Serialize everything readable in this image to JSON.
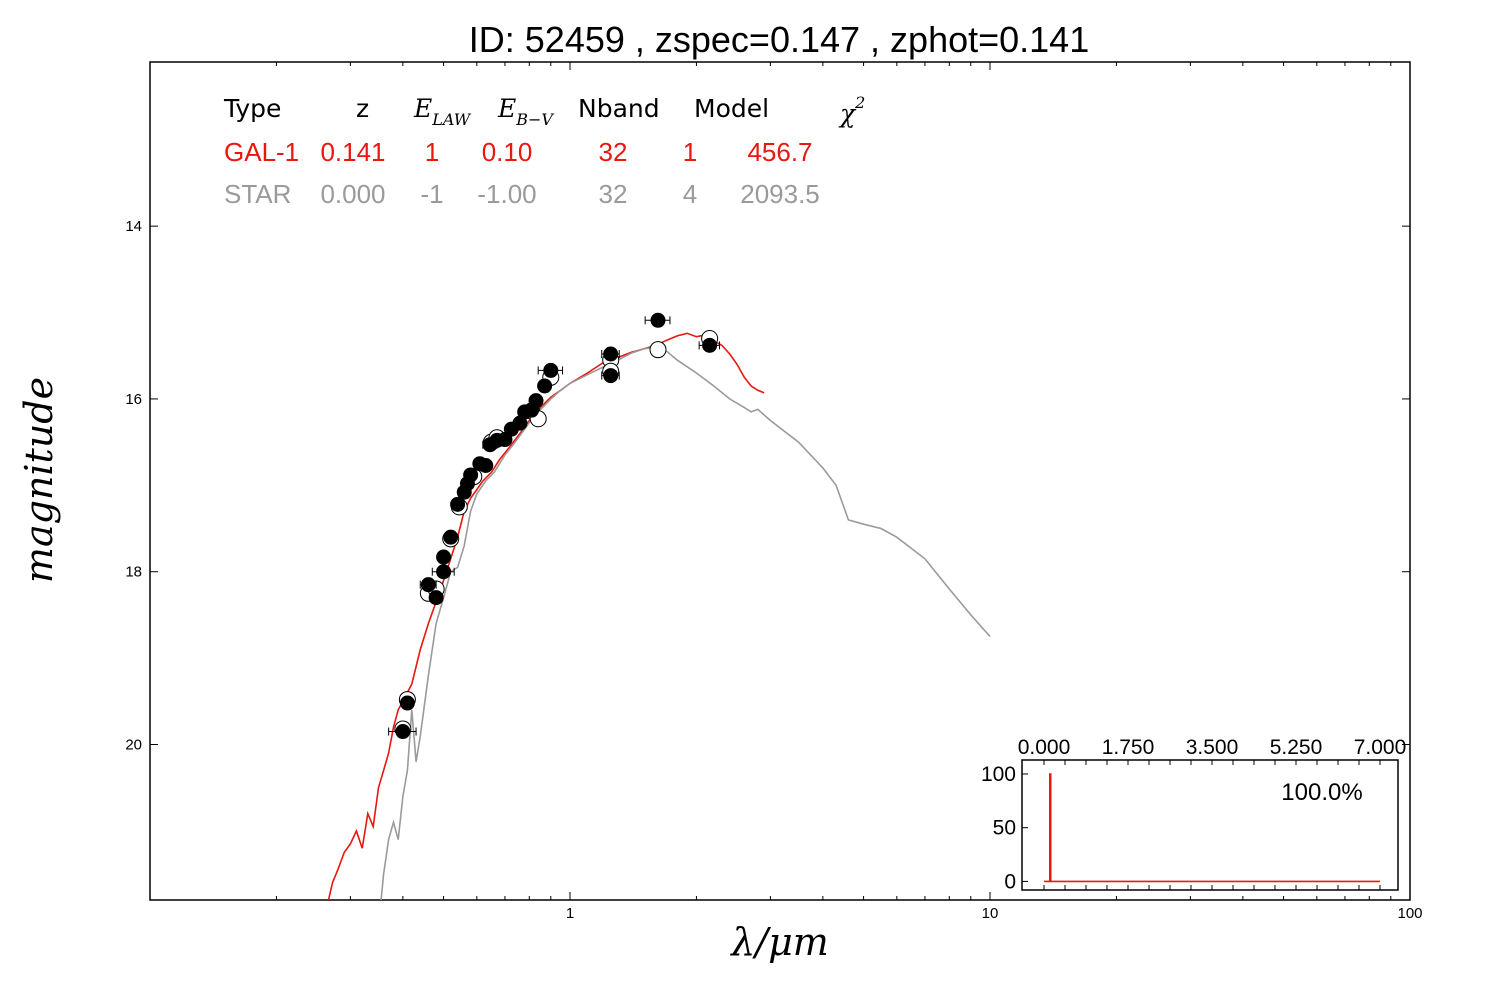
{
  "chart_data": [
    {
      "type": "line",
      "title": "ID:  52459 , zspec=0.147 , zphot=0.141",
      "xlabel": "λ/μm",
      "ylabel": "magnitude",
      "x_scale": "log",
      "xlim": [
        0.1,
        100
      ],
      "ylim": [
        21.8,
        12.1
      ],
      "y_inverted": true,
      "x_tick_labels": [
        "1",
        "10",
        "100"
      ],
      "y_tick_labels": [
        "14",
        "16",
        "18",
        "20"
      ],
      "grid": false,
      "fit_table": {
        "header": {
          "type": "Type",
          "z": "z",
          "elaw_base": "E",
          "elaw_sub": "LAW",
          "ebv_base": "E",
          "ebv_sub": "B−V",
          "nband": "Nband",
          "model": "Model",
          "chi_base": "χ",
          "chi_sup": "2"
        },
        "rows": [
          {
            "type": "GAL-1",
            "z": "0.141",
            "elaw": "1",
            "ebv": "0.10",
            "nband": "32",
            "model": "1",
            "chi2": "456.7",
            "color": "#e8170f"
          },
          {
            "type": "STAR",
            "z": "0.000",
            "elaw": "-1",
            "ebv": "-1.00",
            "nband": "32",
            "model": "4",
            "chi2": "2093.5",
            "color": "#9a9a9a"
          }
        ]
      },
      "series": [
        {
          "color": "#e8170f",
          "points": [
            [
              0.266,
              21.8
            ],
            [
              0.272,
              21.6
            ],
            [
              0.28,
              21.45
            ],
            [
              0.29,
              21.25
            ],
            [
              0.3,
              21.15
            ],
            [
              0.31,
              21.0
            ],
            [
              0.32,
              21.2
            ],
            [
              0.33,
              20.8
            ],
            [
              0.34,
              20.95
            ],
            [
              0.35,
              20.5
            ],
            [
              0.36,
              20.3
            ],
            [
              0.37,
              20.1
            ],
            [
              0.38,
              19.8
            ],
            [
              0.39,
              19.6
            ],
            [
              0.4,
              19.5
            ],
            [
              0.42,
              19.3
            ],
            [
              0.44,
              18.9
            ],
            [
              0.46,
              18.6
            ],
            [
              0.48,
              18.35
            ],
            [
              0.5,
              18.1
            ],
            [
              0.52,
              17.85
            ],
            [
              0.54,
              17.6
            ],
            [
              0.56,
              17.3
            ],
            [
              0.58,
              17.15
            ],
            [
              0.6,
              17.05
            ],
            [
              0.62,
              16.95
            ],
            [
              0.65,
              16.85
            ],
            [
              0.68,
              16.7
            ],
            [
              0.72,
              16.55
            ],
            [
              0.76,
              16.4
            ],
            [
              0.8,
              16.25
            ],
            [
              0.85,
              16.1
            ],
            [
              0.9,
              15.98
            ],
            [
              0.95,
              15.9
            ],
            [
              1.0,
              15.82
            ],
            [
              1.1,
              15.7
            ],
            [
              1.2,
              15.58
            ],
            [
              1.3,
              15.52
            ],
            [
              1.4,
              15.46
            ],
            [
              1.5,
              15.42
            ],
            [
              1.6,
              15.38
            ],
            [
              1.7,
              15.32
            ],
            [
              1.8,
              15.27
            ],
            [
              1.9,
              15.24
            ],
            [
              2.0,
              15.28
            ],
            [
              2.1,
              15.26
            ],
            [
              2.2,
              15.33
            ],
            [
              2.3,
              15.38
            ],
            [
              2.4,
              15.48
            ],
            [
              2.5,
              15.6
            ],
            [
              2.6,
              15.75
            ],
            [
              2.7,
              15.85
            ],
            [
              2.8,
              15.9
            ],
            [
              2.9,
              15.93
            ]
          ]
        },
        {
          "color": "#9a9a9a",
          "points": [
            [
              0.355,
              21.8
            ],
            [
              0.36,
              21.5
            ],
            [
              0.37,
              21.1
            ],
            [
              0.38,
              20.9
            ],
            [
              0.39,
              21.1
            ],
            [
              0.4,
              20.6
            ],
            [
              0.41,
              20.3
            ],
            [
              0.42,
              19.6
            ],
            [
              0.43,
              20.2
            ],
            [
              0.44,
              19.9
            ],
            [
              0.46,
              19.2
            ],
            [
              0.48,
              18.6
            ],
            [
              0.5,
              18.3
            ],
            [
              0.52,
              18.0
            ],
            [
              0.54,
              17.95
            ],
            [
              0.56,
              17.7
            ],
            [
              0.58,
              17.3
            ],
            [
              0.6,
              17.1
            ],
            [
              0.63,
              16.95
            ],
            [
              0.66,
              16.85
            ],
            [
              0.7,
              16.65
            ],
            [
              0.74,
              16.5
            ],
            [
              0.78,
              16.35
            ],
            [
              0.82,
              16.2
            ],
            [
              0.86,
              16.1
            ],
            [
              0.9,
              16.0
            ],
            [
              0.95,
              15.9
            ],
            [
              1.0,
              15.82
            ],
            [
              1.1,
              15.72
            ],
            [
              1.2,
              15.63
            ],
            [
              1.3,
              15.55
            ],
            [
              1.4,
              15.47
            ],
            [
              1.5,
              15.42
            ],
            [
              1.6,
              15.4
            ],
            [
              1.7,
              15.45
            ],
            [
              1.8,
              15.55
            ],
            [
              2.0,
              15.7
            ],
            [
              2.2,
              15.85
            ],
            [
              2.4,
              16.0
            ],
            [
              2.6,
              16.1
            ],
            [
              2.7,
              16.15
            ],
            [
              2.8,
              16.12
            ],
            [
              3.0,
              16.25
            ],
            [
              3.5,
              16.5
            ],
            [
              4.0,
              16.8
            ],
            [
              4.3,
              17.0
            ],
            [
              4.6,
              17.4
            ],
            [
              5.0,
              17.45
            ],
            [
              5.5,
              17.5
            ],
            [
              6.0,
              17.6
            ],
            [
              7.0,
              17.85
            ],
            [
              8.0,
              18.2
            ],
            [
              9.0,
              18.5
            ],
            [
              10.0,
              18.75
            ]
          ]
        }
      ],
      "observed_points": [
        {
          "x": 0.4,
          "y": 19.85,
          "xerr": 0.03
        },
        {
          "x": 0.41,
          "y": 19.52,
          "xerr": 0.004
        },
        {
          "x": 0.46,
          "y": 18.15,
          "xerr": 0.02
        },
        {
          "x": 0.48,
          "y": 18.3,
          "xerr": 0.004
        },
        {
          "x": 0.5,
          "y": 18.0,
          "xerr": 0.03
        },
        {
          "x": 0.5,
          "y": 17.83,
          "xerr": 0.004
        },
        {
          "x": 0.52,
          "y": 17.6,
          "xerr": 0.004
        },
        {
          "x": 0.54,
          "y": 17.22,
          "xerr": 0.004
        },
        {
          "x": 0.56,
          "y": 17.08,
          "xerr": 0.004
        },
        {
          "x": 0.57,
          "y": 16.98,
          "xerr": 0.004
        },
        {
          "x": 0.58,
          "y": 16.88,
          "xerr": 0.004
        },
        {
          "x": 0.61,
          "y": 16.75,
          "xerr": 0.004
        },
        {
          "x": 0.63,
          "y": 16.77,
          "xerr": 0.004
        },
        {
          "x": 0.645,
          "y": 16.53,
          "xerr": 0.025
        },
        {
          "x": 0.67,
          "y": 16.48,
          "xerr": 0.004
        },
        {
          "x": 0.7,
          "y": 16.47,
          "xerr": 0.004
        },
        {
          "x": 0.725,
          "y": 16.35,
          "xerr": 0.004
        },
        {
          "x": 0.76,
          "y": 16.28,
          "xerr": 0.004
        },
        {
          "x": 0.78,
          "y": 16.15,
          "xerr": 0.004
        },
        {
          "x": 0.81,
          "y": 16.13,
          "xerr": 0.004
        },
        {
          "x": 0.83,
          "y": 16.02,
          "xerr": 0.004
        },
        {
          "x": 0.87,
          "y": 15.85,
          "xerr": 0.004
        },
        {
          "x": 0.9,
          "y": 15.67,
          "xerr": 0.06
        },
        {
          "x": 1.25,
          "y": 15.48,
          "xerr": 0.06
        },
        {
          "x": 1.25,
          "y": 15.73,
          "xerr": 0.06
        },
        {
          "x": 1.62,
          "y": 15.09,
          "xerr": 0.11
        },
        {
          "x": 2.15,
          "y": 15.38,
          "xerr": 0.12
        }
      ],
      "model_points": [
        {
          "x": 0.4,
          "y": 19.82
        },
        {
          "x": 0.41,
          "y": 19.48
        },
        {
          "x": 0.46,
          "y": 18.25
        },
        {
          "x": 0.48,
          "y": 18.2
        },
        {
          "x": 0.52,
          "y": 17.62
        },
        {
          "x": 0.545,
          "y": 17.25
        },
        {
          "x": 0.59,
          "y": 16.9
        },
        {
          "x": 0.65,
          "y": 16.5
        },
        {
          "x": 0.67,
          "y": 16.45
        },
        {
          "x": 0.81,
          "y": 16.14
        },
        {
          "x": 0.84,
          "y": 16.23
        },
        {
          "x": 0.9,
          "y": 15.75
        },
        {
          "x": 1.25,
          "y": 15.55
        },
        {
          "x": 1.25,
          "y": 15.68
        },
        {
          "x": 1.62,
          "y": 15.43
        },
        {
          "x": 2.15,
          "y": 15.3
        }
      ]
    },
    {
      "type": "line",
      "inset": true,
      "xlim": [
        0.0,
        7.0
      ],
      "ylim": [
        -8,
        113
      ],
      "x_tick_labels": [
        "0.000",
        "1.750",
        "3.500",
        "5.250",
        "7.000"
      ],
      "y_tick_labels": [
        "100",
        "50",
        "0"
      ],
      "annotation": "100.0%",
      "series": [
        {
          "color": "#e8170f",
          "points": [
            [
              0.0,
              0
            ],
            [
              0.12,
              0
            ],
            [
              0.12,
              100
            ],
            [
              0.14,
              100
            ],
            [
              0.14,
              0
            ],
            [
              7.0,
              0
            ]
          ]
        }
      ]
    }
  ]
}
